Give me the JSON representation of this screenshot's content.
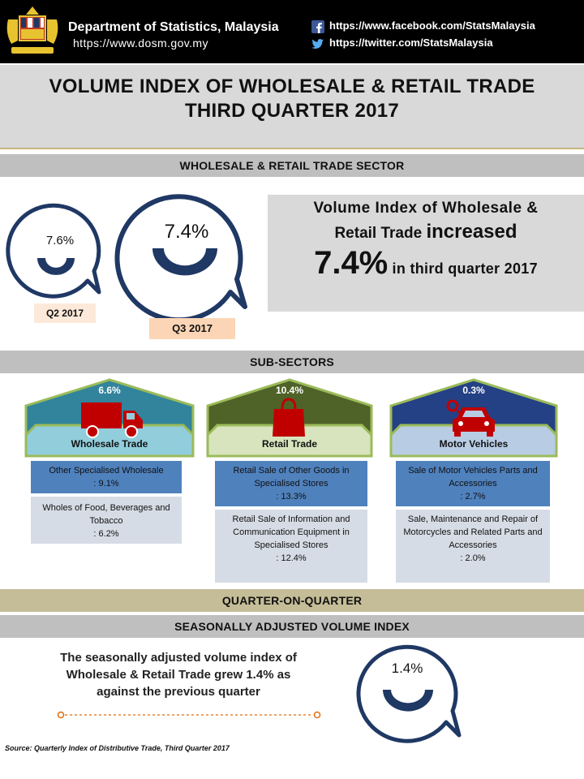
{
  "header": {
    "department": "Department of Statistics, Malaysia",
    "url": "https://www.dosm.gov.my",
    "facebook": "https://www.facebook.com/StatsMalaysia",
    "twitter": "https://twitter.com/StatsMalaysia"
  },
  "title": {
    "line1": "VOLUME INDEX OF WHOLESALE & RETAIL TRADE",
    "line2": "THIRD QUARTER 2017"
  },
  "sector_bar": "WHOLESALE & RETAIL TRADE  SECTOR",
  "quarters": [
    {
      "value": "7.6%",
      "label": "Q2 2017"
    },
    {
      "value": "7.4%",
      "label": "Q3 2017"
    }
  ],
  "headline": {
    "line1": "Volume Index of Wholesale &",
    "line2_a": "Retail Trade ",
    "line2_b": "increased",
    "pct": "7.4%",
    "line3": " in third quarter 2017"
  },
  "subsectors_bar": "SUB-SECTORS",
  "subsectors": [
    {
      "pct": "6.6%",
      "name": "Wholesale Trade",
      "items": [
        {
          "text": "Other Specialised Wholesale",
          "value": ": 9.1%"
        },
        {
          "text": "Wholes of Food, Beverages and Tobacco",
          "value": ": 6.2%"
        }
      ]
    },
    {
      "pct": "10.4%",
      "name": "Retail Trade",
      "items": [
        {
          "text": "Retail Sale of Other Goods in Specialised Stores",
          "value": ": 13.3%"
        },
        {
          "text": "Retail Sale of Information and Communication Equipment in Specialised Stores",
          "value": ": 12.4%"
        }
      ]
    },
    {
      "pct": "0.3%",
      "name": "Motor Vehicles",
      "items": [
        {
          "text": "Sale of Motor Vehicles Parts and Accessories",
          "value": ": 2.7%"
        },
        {
          "text": "Sale, Maintenance and Repair of Motorcycles and Related Parts and Accessories",
          "value": ": 2.0%"
        }
      ]
    }
  ],
  "qoq_bar": "QUARTER-ON-QUARTER",
  "sa_bar": "SEASONALLY ADJUSTED VOLUME INDEX",
  "sa_text": "The seasonally adjusted volume  index of Wholesale & Retail Trade grew 1.4% as against the previous quarter",
  "sa_value": "1.4%",
  "source": "Source: Quarterly Index of Distributive Trade,  Third Quarter 2017",
  "colors": {
    "navy": "#1f3864",
    "blue": "#4f81bd",
    "green": "#9bbb59",
    "olive": "#4f6228",
    "teal": "#31849b",
    "tan": "#c4bd97",
    "peach": "#fbd5b5",
    "orange": "#e46c0a"
  }
}
